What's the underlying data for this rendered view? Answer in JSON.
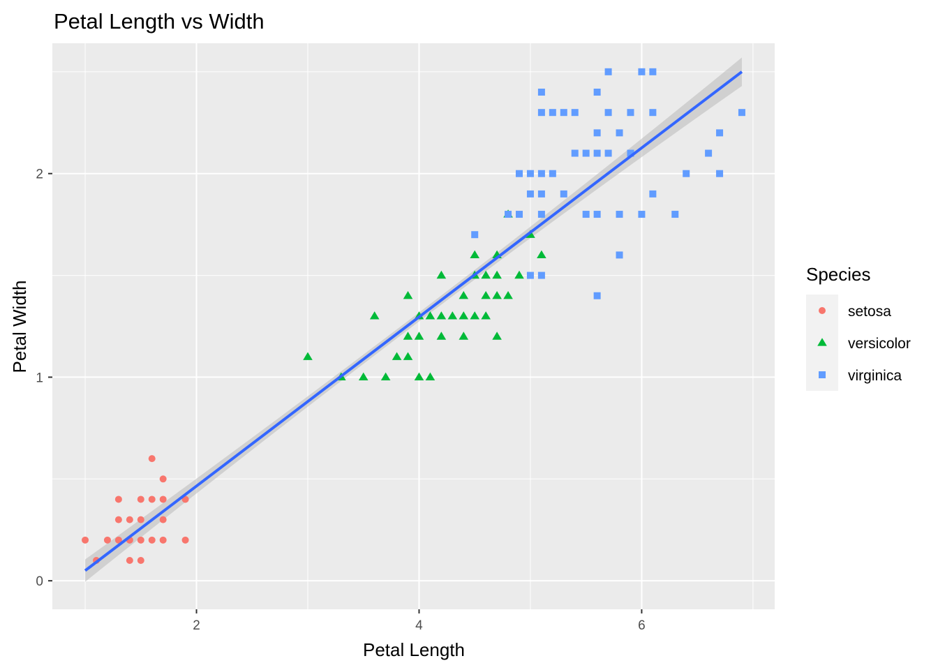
{
  "chart_data": {
    "type": "scatter",
    "title": "Petal Length vs Width",
    "xlabel": "Petal Length",
    "ylabel": "Petal Width",
    "xlim": [
      0.705,
      7.195
    ],
    "ylim": [
      -0.14,
      2.64
    ],
    "x_ticks": [
      2,
      4,
      6
    ],
    "y_ticks": [
      0,
      1,
      2
    ],
    "x_tick_labels": [
      "2",
      "4",
      "6"
    ],
    "y_tick_labels": [
      "0",
      "1",
      "2"
    ],
    "grid": true,
    "legend": {
      "title": "Species",
      "position": "right"
    },
    "series": [
      {
        "name": "setosa",
        "color": "#F8766D",
        "marker": "circle",
        "points": [
          [
            1.0,
            0.2
          ],
          [
            1.1,
            0.1
          ],
          [
            1.2,
            0.2
          ],
          [
            1.3,
            0.2
          ],
          [
            1.3,
            0.3
          ],
          [
            1.3,
            0.4
          ],
          [
            1.4,
            0.1
          ],
          [
            1.4,
            0.2
          ],
          [
            1.4,
            0.3
          ],
          [
            1.5,
            0.1
          ],
          [
            1.5,
            0.2
          ],
          [
            1.5,
            0.3
          ],
          [
            1.5,
            0.4
          ],
          [
            1.6,
            0.2
          ],
          [
            1.6,
            0.4
          ],
          [
            1.6,
            0.6
          ],
          [
            1.7,
            0.2
          ],
          [
            1.7,
            0.3
          ],
          [
            1.7,
            0.4
          ],
          [
            1.7,
            0.5
          ],
          [
            1.9,
            0.2
          ],
          [
            1.9,
            0.4
          ]
        ]
      },
      {
        "name": "versicolor",
        "color": "#00BA38",
        "marker": "triangle",
        "points": [
          [
            3.0,
            1.1
          ],
          [
            3.3,
            1.0
          ],
          [
            3.5,
            1.0
          ],
          [
            3.6,
            1.3
          ],
          [
            3.7,
            1.0
          ],
          [
            3.8,
            1.1
          ],
          [
            3.9,
            1.1
          ],
          [
            3.9,
            1.2
          ],
          [
            3.9,
            1.4
          ],
          [
            4.0,
            1.0
          ],
          [
            4.0,
            1.2
          ],
          [
            4.0,
            1.3
          ],
          [
            4.1,
            1.0
          ],
          [
            4.1,
            1.3
          ],
          [
            4.2,
            1.2
          ],
          [
            4.2,
            1.3
          ],
          [
            4.2,
            1.5
          ],
          [
            4.3,
            1.3
          ],
          [
            4.4,
            1.2
          ],
          [
            4.4,
            1.3
          ],
          [
            4.4,
            1.4
          ],
          [
            4.5,
            1.3
          ],
          [
            4.5,
            1.5
          ],
          [
            4.5,
            1.6
          ],
          [
            4.6,
            1.3
          ],
          [
            4.6,
            1.4
          ],
          [
            4.6,
            1.5
          ],
          [
            4.7,
            1.2
          ],
          [
            4.7,
            1.4
          ],
          [
            4.7,
            1.5
          ],
          [
            4.7,
            1.6
          ],
          [
            4.8,
            1.4
          ],
          [
            4.8,
            1.8
          ],
          [
            4.9,
            1.5
          ],
          [
            5.0,
            1.7
          ],
          [
            5.1,
            1.6
          ]
        ]
      },
      {
        "name": "virginica",
        "color": "#619CFF",
        "marker": "square",
        "points": [
          [
            4.5,
            1.7
          ],
          [
            4.8,
            1.8
          ],
          [
            4.9,
            1.8
          ],
          [
            4.9,
            2.0
          ],
          [
            5.0,
            1.5
          ],
          [
            5.0,
            1.9
          ],
          [
            5.0,
            2.0
          ],
          [
            5.1,
            1.5
          ],
          [
            5.1,
            1.8
          ],
          [
            5.1,
            1.9
          ],
          [
            5.1,
            2.0
          ],
          [
            5.1,
            2.3
          ],
          [
            5.1,
            2.4
          ],
          [
            5.2,
            2.0
          ],
          [
            5.2,
            2.3
          ],
          [
            5.3,
            1.9
          ],
          [
            5.3,
            2.3
          ],
          [
            5.4,
            2.1
          ],
          [
            5.4,
            2.3
          ],
          [
            5.5,
            1.8
          ],
          [
            5.5,
            2.1
          ],
          [
            5.6,
            1.4
          ],
          [
            5.6,
            1.8
          ],
          [
            5.6,
            2.1
          ],
          [
            5.6,
            2.2
          ],
          [
            5.6,
            2.4
          ],
          [
            5.7,
            2.1
          ],
          [
            5.7,
            2.3
          ],
          [
            5.7,
            2.5
          ],
          [
            5.8,
            1.6
          ],
          [
            5.8,
            1.8
          ],
          [
            5.8,
            2.2
          ],
          [
            5.9,
            2.1
          ],
          [
            5.9,
            2.3
          ],
          [
            6.0,
            1.8
          ],
          [
            6.0,
            2.5
          ],
          [
            6.1,
            1.9
          ],
          [
            6.1,
            2.3
          ],
          [
            6.1,
            2.5
          ],
          [
            6.3,
            1.8
          ],
          [
            6.4,
            2.0
          ],
          [
            6.6,
            2.1
          ],
          [
            6.7,
            2.0
          ],
          [
            6.7,
            2.2
          ],
          [
            6.9,
            2.3
          ]
        ]
      }
    ],
    "trend": {
      "color": "#3366FF",
      "band_color": "#BEBEBE",
      "start": [
        1.0,
        0.05
      ],
      "end": [
        6.9,
        2.5
      ],
      "band_halfwidth": [
        0.055,
        0.022,
        0.07
      ]
    }
  }
}
